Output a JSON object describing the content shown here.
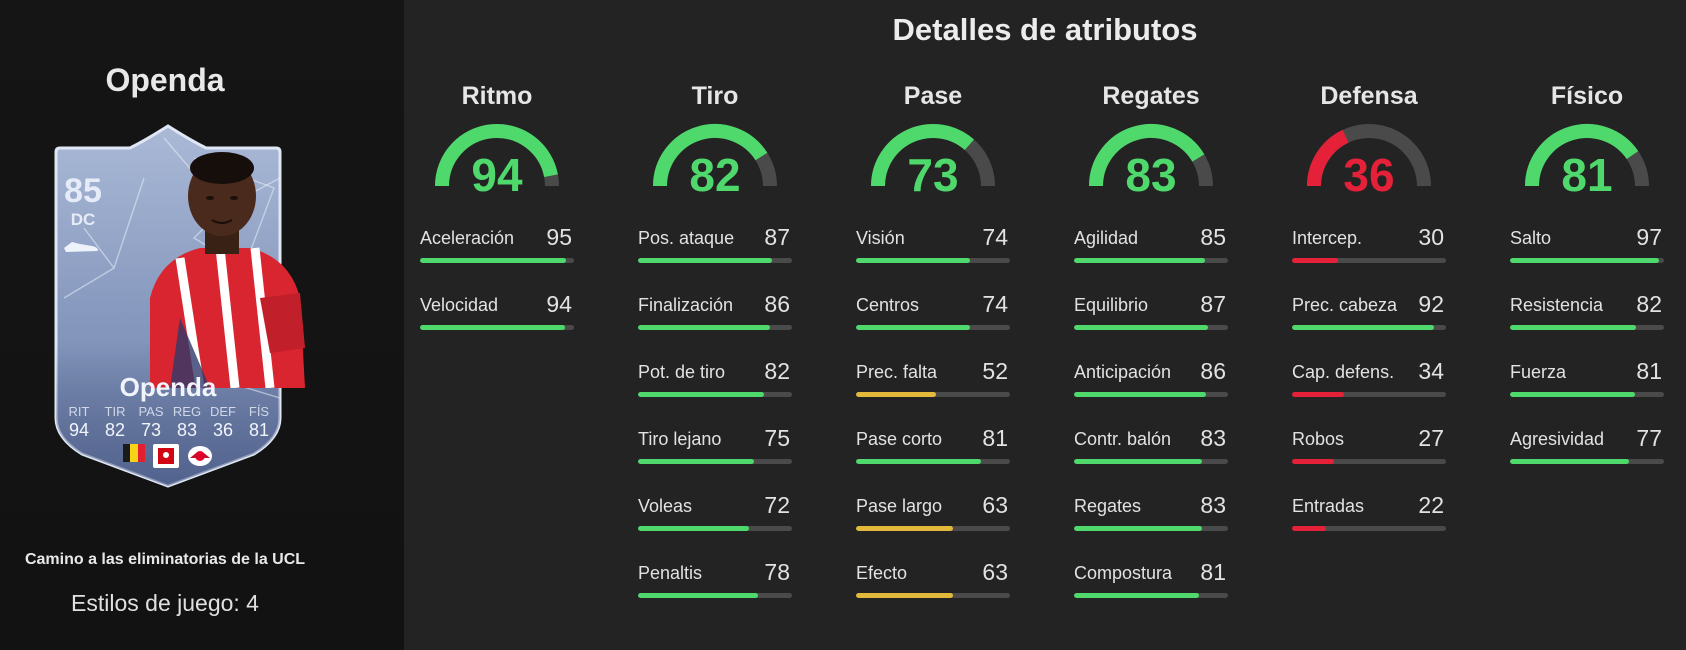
{
  "colors": {
    "high": "#4fd86b",
    "mid": "#e2b93b",
    "low": "#e5213a",
    "track": "#4a4a4a"
  },
  "player": {
    "name": "Openda",
    "card": {
      "rating": "85",
      "position": "DC",
      "name": "Openda",
      "stat_heads": [
        "RIT",
        "TIR",
        "PAS",
        "REG",
        "DEF",
        "FÍS"
      ],
      "stat_vals": [
        "94",
        "82",
        "73",
        "83",
        "36",
        "81"
      ]
    },
    "campaign": "Camino a las eliminatorias de la UCL",
    "playstyles": "Estilos de juego: 4"
  },
  "section_title": "Detalles de atributos",
  "columns": [
    {
      "title": "Ritmo",
      "value": 94,
      "attrs": [
        {
          "label": "Aceleración",
          "value": 95
        },
        {
          "label": "Velocidad",
          "value": 94
        }
      ]
    },
    {
      "title": "Tiro",
      "value": 82,
      "attrs": [
        {
          "label": "Pos. ataque",
          "value": 87
        },
        {
          "label": "Finalización",
          "value": 86
        },
        {
          "label": "Pot. de tiro",
          "value": 82
        },
        {
          "label": "Tiro lejano",
          "value": 75
        },
        {
          "label": "Voleas",
          "value": 72
        },
        {
          "label": "Penaltis",
          "value": 78
        }
      ]
    },
    {
      "title": "Pase",
      "value": 73,
      "attrs": [
        {
          "label": "Visión",
          "value": 74
        },
        {
          "label": "Centros",
          "value": 74
        },
        {
          "label": "Prec. falta",
          "value": 52
        },
        {
          "label": "Pase corto",
          "value": 81
        },
        {
          "label": "Pase largo",
          "value": 63
        },
        {
          "label": "Efecto",
          "value": 63
        }
      ]
    },
    {
      "title": "Regates",
      "value": 83,
      "attrs": [
        {
          "label": "Agilidad",
          "value": 85
        },
        {
          "label": "Equilibrio",
          "value": 87
        },
        {
          "label": "Anticipación",
          "value": 86
        },
        {
          "label": "Contr. balón",
          "value": 83
        },
        {
          "label": "Regates",
          "value": 83
        },
        {
          "label": "Compostura",
          "value": 81
        }
      ]
    },
    {
      "title": "Defensa",
      "value": 36,
      "attrs": [
        {
          "label": "Intercep.",
          "value": 30
        },
        {
          "label": "Prec. cabeza",
          "value": 92
        },
        {
          "label": "Cap. defens.",
          "value": 34
        },
        {
          "label": "Robos",
          "value": 27
        },
        {
          "label": "Entradas",
          "value": 22
        }
      ]
    },
    {
      "title": "Físico",
      "value": 81,
      "attrs": [
        {
          "label": "Salto",
          "value": 97
        },
        {
          "label": "Resistencia",
          "value": 82
        },
        {
          "label": "Fuerza",
          "value": 81
        },
        {
          "label": "Agresividad",
          "value": 77
        }
      ]
    }
  ]
}
